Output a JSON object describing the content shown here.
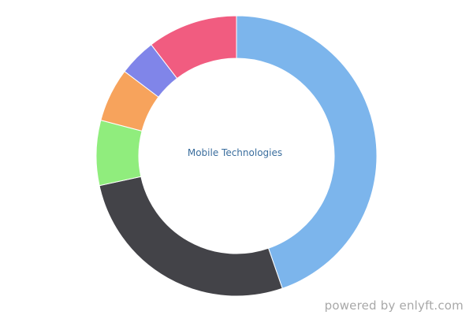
{
  "chart_data": {
    "type": "pie",
    "donut": true,
    "center_label": "Mobile Technologies",
    "title": "",
    "slices": [
      {
        "value": 44.7,
        "color": "#7cb5ec"
      },
      {
        "value": 26.9,
        "color": "#434348"
      },
      {
        "value": 7.5,
        "color": "#90ed7d"
      },
      {
        "value": 6.2,
        "color": "#f7a35c"
      },
      {
        "value": 4.3,
        "color": "#8085e9"
      },
      {
        "value": 10.4,
        "color": "#f15c80"
      }
    ],
    "legend": "none"
  },
  "footer": {
    "credit": "powered by enlyft.com"
  }
}
